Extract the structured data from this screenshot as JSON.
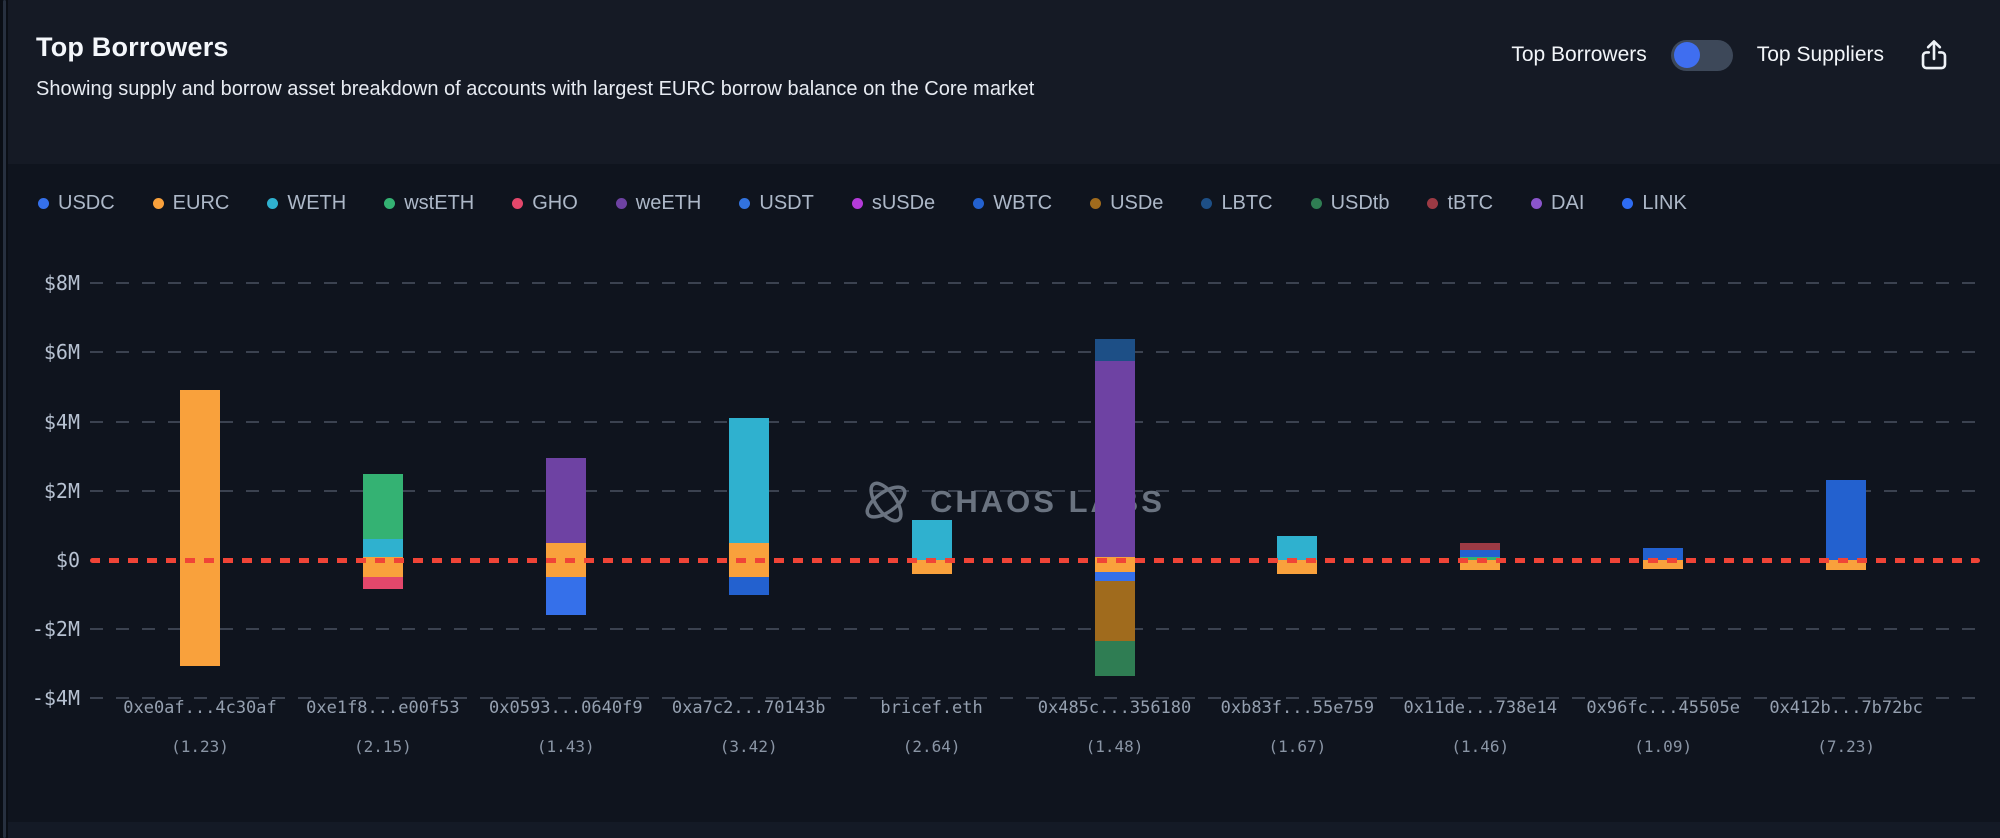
{
  "header": {
    "title": "Top Borrowers",
    "subtitle": "Showing supply and borrow asset breakdown of accounts with largest EURC borrow balance on the Core market",
    "toggle": {
      "left_label": "Top Borrowers",
      "right_label": "Top Suppliers",
      "selected": "Top Borrowers",
      "knob_color": "#3f6ef0"
    },
    "share_icon": "share-export-icon"
  },
  "legend": [
    {
      "label": "USDC",
      "color": "#3570ea"
    },
    {
      "label": "EURC",
      "color": "#f9a13c"
    },
    {
      "label": "WETH",
      "color": "#2fb1cf"
    },
    {
      "label": "wstETH",
      "color": "#34b273"
    },
    {
      "label": "GHO",
      "color": "#e3476b"
    },
    {
      "label": "weETH",
      "color": "#6e42a3"
    },
    {
      "label": "USDT",
      "color": "#3273de"
    },
    {
      "label": "sUSDe",
      "color": "#b43bd9"
    },
    {
      "label": "WBTC",
      "color": "#2361cf"
    },
    {
      "label": "USDe",
      "color": "#a06b1d"
    },
    {
      "label": "LBTC",
      "color": "#1d4f86"
    },
    {
      "label": "USDtb",
      "color": "#2f7d53"
    },
    {
      "label": "tBTC",
      "color": "#9c3a44"
    },
    {
      "label": "DAI",
      "color": "#8a55cc"
    },
    {
      "label": "LINK",
      "color": "#2e6cf2"
    }
  ],
  "chart_data": {
    "type": "bar",
    "stacked": true,
    "diverging": true,
    "units": "USD millions",
    "grid": "dashed-horizontal",
    "legend_position": "top",
    "zero_line_color": "#f04437",
    "watermark": "CHAOS LABS",
    "ylim": [
      -4.3,
      9.0
    ],
    "yticks": [
      {
        "label": "$8M",
        "value": 8
      },
      {
        "label": "$6M",
        "value": 6
      },
      {
        "label": "$4M",
        "value": 4
      },
      {
        "label": "$2M",
        "value": 2
      },
      {
        "label": "$0",
        "value": 0
      },
      {
        "label": "-$2M",
        "value": -2
      },
      {
        "label": "-$4M",
        "value": -4
      }
    ],
    "bars": [
      {
        "account": "0xe0af...4c30af",
        "health_factor": "(1.23)",
        "supply": [
          {
            "asset": "EURC",
            "value": 4.9
          }
        ],
        "borrow": [
          {
            "asset": "EURC",
            "value": 3.05
          }
        ]
      },
      {
        "account": "0xe1f8...e00f53",
        "health_factor": "(2.15)",
        "supply": [
          {
            "asset": "EURC",
            "value": 0.1
          },
          {
            "asset": "WETH",
            "value": 0.5
          },
          {
            "asset": "wstETH",
            "value": 1.9
          }
        ],
        "borrow": [
          {
            "asset": "EURC",
            "value": 0.5
          },
          {
            "asset": "GHO",
            "value": 0.35
          }
        ]
      },
      {
        "account": "0x0593...0640f9",
        "health_factor": "(1.43)",
        "supply": [
          {
            "asset": "EURC",
            "value": 0.5
          },
          {
            "asset": "weETH",
            "value": 2.45
          }
        ],
        "borrow": [
          {
            "asset": "EURC",
            "value": 0.5
          },
          {
            "asset": "USDC",
            "value": 1.1
          }
        ]
      },
      {
        "account": "0xa7c2...70143b",
        "health_factor": "(3.42)",
        "supply": [
          {
            "asset": "EURC",
            "value": 0.5
          },
          {
            "asset": "WETH",
            "value": 3.6
          }
        ],
        "borrow": [
          {
            "asset": "EURC",
            "value": 0.5
          },
          {
            "asset": "WBTC",
            "value": 0.5
          }
        ]
      },
      {
        "account": "bricef.eth",
        "health_factor": "(2.64)",
        "supply": [
          {
            "asset": "WETH",
            "value": 1.15
          }
        ],
        "borrow": [
          {
            "asset": "EURC",
            "value": 0.4
          }
        ]
      },
      {
        "account": "0x485c...356180",
        "health_factor": "(1.48)",
        "supply": [
          {
            "asset": "EURC",
            "value": 0.1
          },
          {
            "asset": "weETH",
            "value": 5.65
          },
          {
            "asset": "LBTC",
            "value": 0.65
          }
        ],
        "borrow": [
          {
            "asset": "EURC",
            "value": 0.35
          },
          {
            "asset": "USDC",
            "value": 0.25
          },
          {
            "asset": "USDe",
            "value": 1.75
          },
          {
            "asset": "USDtb",
            "value": 1.0
          }
        ]
      },
      {
        "account": "0xb83f...55e759",
        "health_factor": "(1.67)",
        "supply": [
          {
            "asset": "WETH",
            "value": 0.7
          }
        ],
        "borrow": [
          {
            "asset": "EURC",
            "value": 0.4
          }
        ]
      },
      {
        "account": "0x11de...738e14",
        "health_factor": "(1.46)",
        "supply": [
          {
            "asset": "wstETH",
            "value": 0.1
          },
          {
            "asset": "WBTC",
            "value": 0.2
          },
          {
            "asset": "tBTC",
            "value": 0.2
          }
        ],
        "borrow": [
          {
            "asset": "EURC",
            "value": 0.3
          }
        ]
      },
      {
        "account": "0x96fc...45505e",
        "health_factor": "(1.09)",
        "supply": [
          {
            "asset": "WBTC",
            "value": 0.35
          }
        ],
        "borrow": [
          {
            "asset": "EURC",
            "value": 0.27
          }
        ]
      },
      {
        "account": "0x412b...7b72bc",
        "health_factor": "(7.23)",
        "supply": [
          {
            "asset": "WBTC",
            "value": 2.3
          }
        ],
        "borrow": [
          {
            "asset": "EURC",
            "value": 0.3
          }
        ]
      }
    ]
  }
}
